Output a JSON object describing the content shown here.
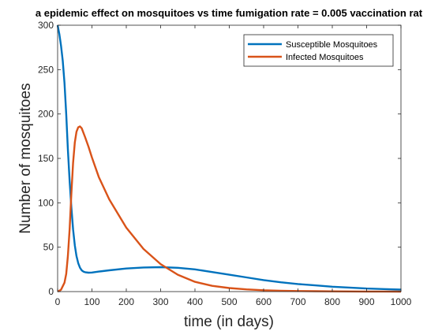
{
  "chart_data": {
    "type": "line",
    "title": "a epidemic effect on mosquitoes vs time fumigation rate = 0.005 vaccination rat",
    "xlabel": "time (in days)",
    "ylabel": "Number of mosquitoes",
    "xlim": [
      0,
      1000
    ],
    "ylim": [
      0,
      300
    ],
    "xticks": [
      0,
      100,
      200,
      300,
      400,
      500,
      600,
      700,
      800,
      900,
      1000
    ],
    "yticks": [
      0,
      50,
      100,
      150,
      200,
      250,
      300
    ],
    "grid": false,
    "legend": "top-right",
    "series": [
      {
        "name": "Susceptible Mosquitoes",
        "color": "#0072BD",
        "x": [
          0,
          5,
          10,
          15,
          20,
          25,
          30,
          35,
          40,
          45,
          50,
          55,
          60,
          65,
          70,
          75,
          80,
          90,
          100,
          120,
          150,
          200,
          250,
          300,
          350,
          400,
          450,
          500,
          550,
          600,
          650,
          700,
          750,
          800,
          850,
          900,
          950,
          1000
        ],
        "y": [
          300,
          290,
          277,
          260,
          235,
          200,
          160,
          125,
          95,
          70,
          52,
          40,
          32,
          27,
          24,
          22.5,
          21.8,
          21.3,
          21.5,
          22.5,
          24,
          26,
          27.2,
          27.5,
          26.8,
          25,
          22,
          19,
          16,
          13,
          10.5,
          8.5,
          7,
          5.5,
          4.5,
          3.5,
          2.8,
          2.2
        ]
      },
      {
        "name": "Infected Mosquitoes",
        "color": "#D95319",
        "x": [
          0,
          10,
          20,
          25,
          30,
          35,
          40,
          45,
          50,
          55,
          60,
          65,
          70,
          80,
          90,
          100,
          120,
          150,
          200,
          250,
          300,
          350,
          400,
          450,
          500,
          550,
          600,
          650,
          700,
          750,
          800,
          850,
          900,
          950,
          1000
        ],
        "y": [
          0,
          2,
          10,
          20,
          40,
          70,
          110,
          145,
          168,
          180,
          185,
          186,
          184,
          174,
          163,
          151,
          129,
          104,
          72,
          48,
          31,
          19,
          11,
          6.5,
          4,
          2.5,
          1.5,
          1,
          0.6,
          0.4,
          0.25,
          0.15,
          0.1,
          0.05,
          0
        ]
      }
    ]
  }
}
